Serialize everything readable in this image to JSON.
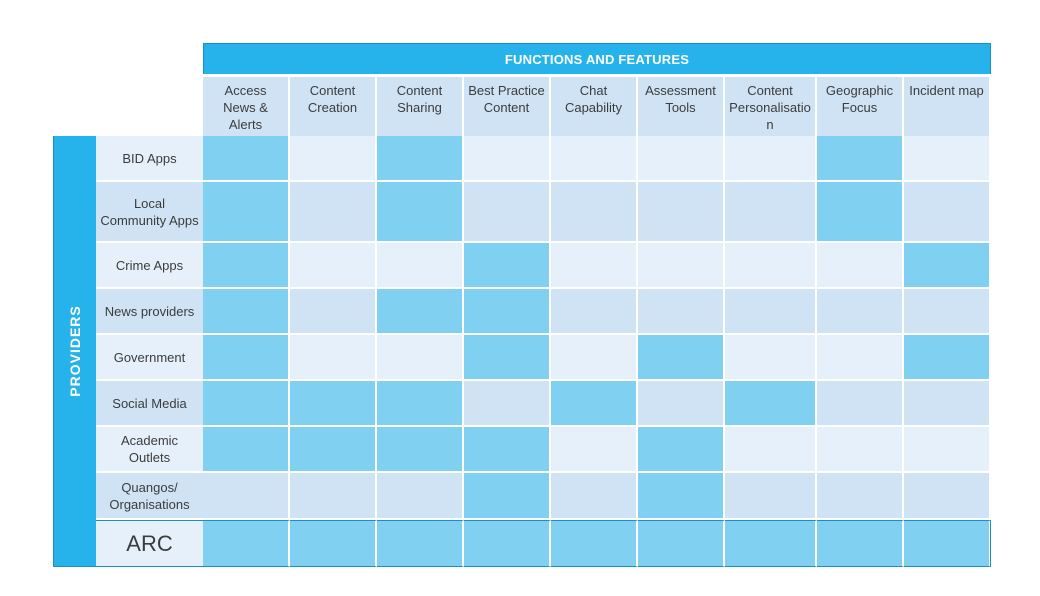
{
  "header": {
    "title": "FUNCTIONS AND FEATURES"
  },
  "side": {
    "label": "PROVIDERS"
  },
  "columns": [
    "Access News & Alerts",
    "Content Creation",
    "Content Sharing",
    "Best Practice Content",
    "Chat Capability",
    "Assessment Tools",
    "Content Personalisation",
    "Geographic Focus",
    "Incident map"
  ],
  "rows": [
    {
      "label": "BID Apps",
      "cells": [
        1,
        0,
        1,
        0,
        0,
        0,
        0,
        1,
        0
      ]
    },
    {
      "label": "Local Community Apps",
      "cells": [
        1,
        0,
        1,
        0,
        0,
        0,
        0,
        1,
        0
      ]
    },
    {
      "label": "Crime Apps",
      "cells": [
        1,
        0,
        0,
        1,
        0,
        0,
        0,
        0,
        1
      ]
    },
    {
      "label": "News providers",
      "cells": [
        1,
        0,
        1,
        1,
        0,
        0,
        0,
        0,
        0
      ]
    },
    {
      "label": "Government",
      "cells": [
        1,
        0,
        0,
        1,
        0,
        1,
        0,
        0,
        1
      ]
    },
    {
      "label": "Social Media",
      "cells": [
        1,
        1,
        1,
        0,
        1,
        0,
        1,
        0,
        0
      ]
    },
    {
      "label": "Academic Outlets",
      "cells": [
        1,
        1,
        1,
        1,
        0,
        1,
        0,
        0,
        0
      ]
    },
    {
      "label": "Quangos/ Organisations",
      "cells": [
        0,
        0,
        0,
        1,
        0,
        1,
        0,
        0,
        0
      ]
    },
    {
      "label": "ARC",
      "cells": [
        1,
        1,
        1,
        1,
        1,
        1,
        1,
        1,
        1
      ]
    }
  ],
  "colors": {
    "banner": "#26b2ea",
    "selected": "#7fd0f1",
    "row_light": "#e6f0fa",
    "row_dark": "#cfe3f5"
  }
}
